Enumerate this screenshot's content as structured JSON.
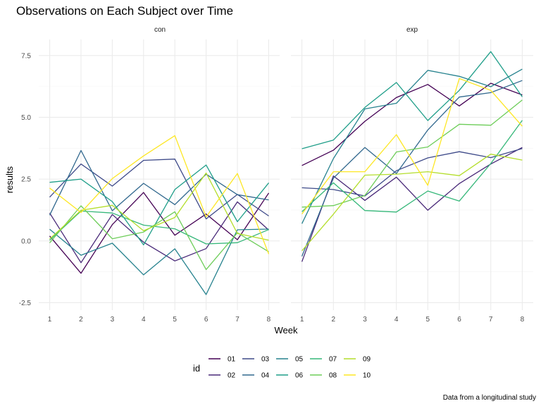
{
  "chart_data": {
    "type": "line",
    "title": "Observations on Each Subject over Time",
    "xlabel": "Week",
    "ylabel": "results",
    "caption": "Data from a longitudinal study",
    "legend_title": "id",
    "legend_position": "bottom",
    "x": [
      1,
      2,
      3,
      4,
      5,
      6,
      7,
      8
    ],
    "xlim": [
      0.65,
      8.35
    ],
    "ylim": [
      -2.8,
      8.15
    ],
    "yticks": [
      -2.5,
      0.0,
      2.5,
      5.0,
      7.5
    ],
    "ytick_labels": [
      "-2.5",
      "0.0",
      "2.5",
      "5.0",
      "7.5"
    ],
    "xtick_labels": [
      "1",
      "2",
      "3",
      "4",
      "5",
      "6",
      "7",
      "8"
    ],
    "grid": true,
    "ids": [
      "01",
      "02",
      "03",
      "04",
      "05",
      "06",
      "07",
      "08",
      "09",
      "10"
    ],
    "colors": {
      "01": "#440154",
      "02": "#482878",
      "03": "#3E4A89",
      "04": "#31688E",
      "05": "#26828E",
      "06": "#1F9E89",
      "07": "#35B779",
      "08": "#6DCD59",
      "09": "#B4DE2C",
      "10": "#FDE725"
    },
    "facets": [
      {
        "label": "con",
        "series": [
          {
            "name": "01",
            "values": [
              0.2,
              -1.31,
              0.66,
              1.96,
              0.23,
              1.09,
              0.05,
              1.94
            ]
          },
          {
            "name": "02",
            "values": [
              1.13,
              -0.88,
              1.07,
              -0.05,
              -0.81,
              -0.31,
              1.58,
              0.44
            ]
          },
          {
            "name": "03",
            "values": [
              1.77,
              3.11,
              2.22,
              3.26,
              3.31,
              0.89,
              1.88,
              1.01
            ]
          },
          {
            "name": "04",
            "values": [
              1.04,
              3.66,
              1.22,
              2.33,
              1.47,
              2.7,
              1.87,
              1.66
            ]
          },
          {
            "name": "05",
            "values": [
              0.47,
              -0.58,
              -0.09,
              -1.37,
              -0.32,
              -2.17,
              0.45,
              0.48
            ]
          },
          {
            "name": "06",
            "values": [
              2.37,
              2.5,
              1.59,
              -0.16,
              2.08,
              3.07,
              0.78,
              2.35
            ]
          },
          {
            "name": "07",
            "values": [
              0.03,
              1.21,
              1.13,
              0.64,
              0.49,
              -0.12,
              -0.07,
              0.46
            ]
          },
          {
            "name": "08",
            "values": [
              -0.08,
              1.42,
              0.09,
              0.36,
              1.18,
              -1.16,
              0.33,
              -0.44
            ]
          },
          {
            "name": "09",
            "values": [
              0.08,
              1.24,
              1.44,
              0.41,
              0.95,
              2.75,
              0.3,
              0.03
            ]
          },
          {
            "name": "10",
            "values": [
              2.14,
              1.15,
              2.52,
              3.44,
              4.26,
              0.97,
              2.73,
              -0.53
            ]
          }
        ]
      },
      {
        "label": "exp",
        "series": [
          {
            "name": "01",
            "values": [
              3.05,
              3.67,
              4.84,
              5.8,
              6.33,
              5.46,
              6.38,
              5.91
            ]
          },
          {
            "name": "02",
            "values": [
              -0.84,
              2.63,
              1.64,
              2.58,
              1.24,
              2.32,
              3.11,
              3.78
            ]
          },
          {
            "name": "03",
            "values": [
              2.15,
              2.08,
              1.82,
              2.84,
              3.36,
              3.61,
              3.37,
              3.74
            ]
          },
          {
            "name": "04",
            "values": [
              -0.62,
              2.54,
              3.78,
              2.73,
              4.49,
              5.82,
              6.0,
              6.49
            ]
          },
          {
            "name": "05",
            "values": [
              0.7,
              3.33,
              5.34,
              5.57,
              6.9,
              6.66,
              6.24,
              6.95
            ]
          },
          {
            "name": "06",
            "values": [
              3.73,
              4.08,
              5.4,
              6.41,
              4.87,
              6.09,
              7.66,
              5.83
            ]
          },
          {
            "name": "07",
            "values": [
              1.18,
              2.35,
              1.23,
              1.17,
              2.02,
              1.61,
              3.13,
              4.88
            ]
          },
          {
            "name": "08",
            "values": [
              1.37,
              1.43,
              1.84,
              3.6,
              3.8,
              4.72,
              4.68,
              5.7
            ]
          },
          {
            "name": "09",
            "values": [
              -0.4,
              1.08,
              2.66,
              2.7,
              2.8,
              2.64,
              3.51,
              3.27
            ]
          },
          {
            "name": "10",
            "values": [
              1.09,
              2.8,
              2.8,
              4.3,
              2.25,
              6.57,
              6.09,
              4.64
            ]
          }
        ]
      }
    ]
  }
}
